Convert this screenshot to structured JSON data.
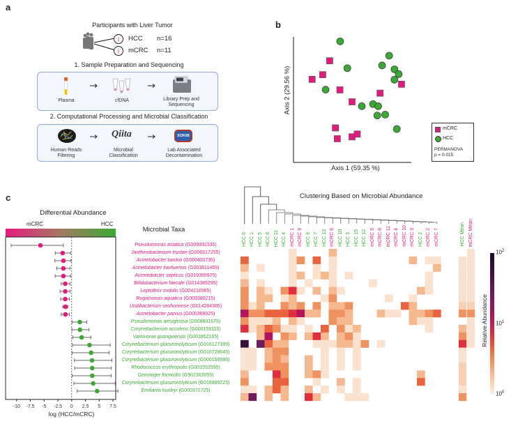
{
  "panel_labels": {
    "a": "a",
    "b": "b",
    "c": "c"
  },
  "colors": {
    "mCRC": "#e6197f",
    "HCC": "#3aaa35",
    "box_border": "#8fa9d8"
  },
  "panel_a": {
    "title": "Participants with Liver Tumor",
    "groups": [
      {
        "name": "HCC",
        "n": "n=16"
      },
      {
        "name": "mCRC",
        "n": "n=11"
      }
    ],
    "step1": {
      "title": "1. Sample Preparation and Sequencing",
      "items": [
        {
          "icon": "blood-tube-icon",
          "label": "Plasma"
        },
        {
          "icon": "dna-tubes-icon",
          "label": "cfDNA"
        },
        {
          "icon": "sequencer-icon",
          "label_line1": "Library Prep and",
          "label_line2": "Sequencing"
        }
      ]
    },
    "step2": {
      "title": "2. Computational Processing and Microbial Classification",
      "items": [
        {
          "icon": "reads-network-icon",
          "label_line1": "Human Reads",
          "label_line2": "Filtering"
        },
        {
          "icon": "qiita-logo",
          "logo_text": "Qiita",
          "label_line1": "Microbial",
          "label_line2": "Classification"
        },
        {
          "icon": "scrub-logo",
          "logo_text": "SCRUB",
          "label_line1": "Lab Associated",
          "label_line2": "Decontamination"
        }
      ]
    }
  },
  "chart_data": [
    {
      "type": "scatter",
      "xlabel": "Axis 1 (59.35 %)",
      "ylabel": "Axis 2 (29.56 %)",
      "xlim": [
        0,
        100
      ],
      "ylim": [
        0,
        100
      ],
      "grid": false,
      "legend": {
        "placement": "right",
        "note_line1": "PERMANOVA",
        "note_line2": "p = 0.015"
      },
      "series": [
        {
          "name": "mCRC",
          "marker": "square",
          "color": "#e6197f",
          "points": [
            [
              30.7,
              81.0
            ],
            [
              24.8,
              69.9
            ],
            [
              15.8,
              66.2
            ],
            [
              39.4,
              57.8
            ],
            [
              49.7,
              48.3
            ],
            [
              73.5,
              55.2
            ],
            [
              91.7,
              62.3
            ],
            [
              35.6,
              27.5
            ],
            [
              37.2,
              18.9
            ],
            [
              49.7,
              20.4
            ],
            [
              54.1,
              22.6
            ]
          ]
        },
        {
          "name": "HCC",
          "marker": "circle",
          "color": "#3aaa35",
          "points": [
            [
              39.6,
              96.5
            ],
            [
              45.7,
              75.1
            ],
            [
              27.3,
              58.0
            ],
            [
              58.0,
              44.8
            ],
            [
              67.5,
              46.5
            ],
            [
              71.9,
              44.8
            ],
            [
              71.1,
              37.4
            ],
            [
              77.8,
              38.1
            ],
            [
              87.7,
              26.6
            ],
            [
              81.2,
              85.1
            ],
            [
              75.2,
              77.3
            ],
            [
              85.7,
              74.2
            ],
            [
              89.3,
              70.4
            ],
            [
              85.7,
              65.9
            ]
          ]
        }
      ]
    },
    {
      "type": "forest",
      "title": "Differential Abundance",
      "gradient_left": "mCRC",
      "gradient_right": "HCC",
      "xlabel": "log (HCC/mCRC)",
      "xlim": [
        -12,
        8
      ],
      "xticks": [
        "-10",
        "-7.5",
        "-5",
        "-2.5",
        "0",
        "2.5",
        "5",
        "7.5"
      ],
      "xtick_values": [
        -10,
        -7.5,
        -5,
        -2.5,
        0,
        2.5,
        5,
        7.5
      ],
      "rows": [
        {
          "est": -5.67,
          "lo": -11.0,
          "hi": -1.5,
          "group": "mCRC"
        },
        {
          "est": -1.64,
          "lo": -2.97,
          "hi": -0.2,
          "group": "mCRC"
        },
        {
          "est": -1.5,
          "lo": -3.05,
          "hi": -0.12,
          "group": "mCRC"
        },
        {
          "est": -1.5,
          "lo": -2.7,
          "hi": -0.3,
          "group": "mCRC"
        },
        {
          "est": -1.5,
          "lo": -3.0,
          "hi": -0.2,
          "group": "mCRC"
        },
        {
          "est": -1.17,
          "lo": -1.9,
          "hi": -0.3,
          "group": "mCRC"
        },
        {
          "est": -1.17,
          "lo": -2.1,
          "hi": -0.3,
          "group": "mCRC"
        },
        {
          "est": -1.17,
          "lo": -2.0,
          "hi": -0.4,
          "group": "mCRC"
        },
        {
          "est": -1.13,
          "lo": -1.6,
          "hi": -0.7,
          "group": "mCRC"
        },
        {
          "est": -1.13,
          "lo": -1.9,
          "hi": -0.4,
          "group": "mCRC"
        },
        {
          "est": 1.47,
          "lo": 0.08,
          "hi": 2.74,
          "group": "HCC"
        },
        {
          "est": 1.51,
          "lo": 0.04,
          "hi": 3.15,
          "group": "HCC"
        },
        {
          "est": 1.81,
          "lo": 0.2,
          "hi": 3.49,
          "group": "HCC"
        },
        {
          "est": 3.24,
          "lo": 0.16,
          "hi": 7.0,
          "group": "HCC"
        },
        {
          "est": 3.53,
          "lo": 0.08,
          "hi": 6.8,
          "group": "HCC"
        },
        {
          "est": 3.7,
          "lo": 0.5,
          "hi": 7.3,
          "group": "HCC"
        },
        {
          "est": 3.74,
          "lo": 0.55,
          "hi": 7.2,
          "group": "HCC"
        },
        {
          "est": 3.74,
          "lo": 0.08,
          "hi": 7.2,
          "group": "HCC"
        },
        {
          "est": 3.9,
          "lo": 0.4,
          "hi": 7.9,
          "group": "HCC"
        },
        {
          "est": 4.62,
          "lo": 1.0,
          "hi": 8.4,
          "group": "HCC"
        }
      ]
    },
    {
      "type": "heatmap",
      "title": "Clustering Based on Microbial Abundance",
      "row_header": "Microbial Taxa",
      "colorbar_label": "Relative Abundance",
      "colorbar_ticks": [
        {
          "base": "10",
          "exp": "2"
        },
        {
          "base": "10",
          "exp": "1"
        },
        {
          "base": "10",
          "exp": "0"
        }
      ],
      "scale": "log",
      "range": [
        1,
        100
      ],
      "taxa": [
        {
          "name": "Pseudomonas asiatica",
          "id": "(G009932335)",
          "group": "mCRC"
        },
        {
          "name": "Janthinobacterium tructae",
          "id": "(G006517255)",
          "group": "mCRC"
        },
        {
          "name": "Acinetobacter tandoii",
          "id": "(G000400735)",
          "group": "mCRC"
        },
        {
          "name": "Acinetobacter tianfuensis",
          "id": "(G003611465)",
          "group": "mCRC"
        },
        {
          "name": "Acinetobacter septicus",
          "id": "(G019355975)",
          "group": "mCRC"
        },
        {
          "name": "Bifidobacterium faecale",
          "id": "(G014385295)",
          "group": "mCRC"
        },
        {
          "name": "Leptothrix mobilis",
          "id": "(G004216565)",
          "group": "mCRC"
        },
        {
          "name": "Rugamonas aquatica",
          "id": "(G009380215)",
          "group": "mCRC"
        },
        {
          "name": "Undibacterium seohonense",
          "id": "(G014284305)",
          "group": "mCRC"
        },
        {
          "name": "Acinetobacter parvus",
          "id": "(G000368025)",
          "group": "mCRC"
        },
        {
          "name": "Pseudomonas aeruginosa",
          "id": "(G008801675)",
          "group": "HCC"
        },
        {
          "name": "Corynebacterium accolens",
          "id": "(G000159115)",
          "group": "HCC"
        },
        {
          "name": "Variovorax guangxiensis",
          "id": "(G003952165)",
          "group": "HCC"
        },
        {
          "name": "Corynebacterium glucuronolyticum",
          "id": "(G016127395)",
          "group": "HCC"
        },
        {
          "name": "Corynebacterium glucuronolyticum",
          "id": "(G016728645)",
          "group": "HCC"
        },
        {
          "name": "Corynebacterium glucuronolyticum",
          "id": "(G000159595)",
          "group": "HCC"
        },
        {
          "name": "Rhodococcus erythropolis",
          "id": "(G001552595)",
          "group": "HCC"
        },
        {
          "name": "Gemmiger formicilis",
          "id": "(G902363055)",
          "group": "HCC"
        },
        {
          "name": "Corynebacterium glucuronolyticum",
          "id": "(G016889225)",
          "group": "HCC"
        },
        {
          "name": "Emiliania huxleyi",
          "id": "(G000372725)",
          "group": "HCC"
        }
      ],
      "columns": [
        {
          "label": "HCC 6",
          "group": "HCC"
        },
        {
          "label": "HCC 1",
          "group": "HCC"
        },
        {
          "label": "HCC 5",
          "group": "HCC"
        },
        {
          "label": "HCC 8",
          "group": "HCC"
        },
        {
          "label": "HCC 11",
          "group": "HCC"
        },
        {
          "label": "HCC 4",
          "group": "HCC"
        },
        {
          "label": "mCRC 1",
          "group": "mCRC"
        },
        {
          "label": "mCRC 9",
          "group": "mCRC"
        },
        {
          "label": "HCC 9",
          "group": "HCC"
        },
        {
          "label": "HCC 7",
          "group": "HCC"
        },
        {
          "label": "HCC 13",
          "group": "HCC"
        },
        {
          "label": "mCRC 6",
          "group": "mCRC"
        },
        {
          "label": "HCC 10",
          "group": "HCC"
        },
        {
          "label": "HCC 3",
          "group": "HCC"
        },
        {
          "label": "HCC 15",
          "group": "HCC"
        },
        {
          "label": "HCC 12",
          "group": "HCC"
        },
        {
          "label": "mCRC 5",
          "group": "mCRC"
        },
        {
          "label": "mCRC 8",
          "group": "mCRC"
        },
        {
          "label": "mCRC 11",
          "group": "mCRC"
        },
        {
          "label": "mCRC 4",
          "group": "mCRC"
        },
        {
          "label": "mCRC 10",
          "group": "mCRC"
        },
        {
          "label": "mCRC 3",
          "group": "mCRC"
        },
        {
          "label": "HCC 2",
          "group": "HCC"
        },
        {
          "label": "mCRC 2",
          "group": "mCRC"
        },
        {
          "label": "mCRC 7",
          "group": "mCRC"
        }
      ],
      "mean_columns": [
        {
          "label": "HCC Mean",
          "group": "HCC"
        },
        {
          "label": "mCRC Mean",
          "group": "mCRC"
        }
      ],
      "values": [
        [
          0,
          0,
          0,
          0,
          0,
          0,
          1.2,
          0,
          0,
          0,
          0,
          2,
          0,
          0,
          0,
          0,
          0,
          0,
          0,
          0,
          0,
          0,
          0,
          0,
          0
        ],
        [
          4.5,
          0,
          0,
          0,
          0,
          0,
          1.2,
          3,
          0,
          4.5,
          0,
          1.2,
          0,
          0,
          0,
          0,
          0,
          0,
          0,
          0,
          0,
          2,
          0,
          1.2,
          1.2
        ],
        [
          2,
          0,
          1.2,
          0,
          0,
          0,
          1.2,
          0,
          0,
          1.2,
          0,
          1.2,
          0,
          0,
          0,
          0,
          0,
          0,
          0,
          0,
          0,
          0,
          0,
          0,
          2
        ],
        [
          1.2,
          0,
          0,
          0,
          0,
          0,
          1.2,
          2,
          0,
          1.2,
          2,
          1.2,
          0,
          1.2,
          0,
          0,
          0,
          0,
          0,
          0,
          0,
          0,
          0,
          1.2,
          0
        ],
        [
          2,
          0,
          1.2,
          0,
          0,
          0,
          1.2,
          0,
          1.2,
          0,
          0,
          1.2,
          0,
          0,
          0,
          0,
          1.2,
          0,
          0,
          0,
          0,
          0,
          0,
          1.2,
          0
        ],
        [
          3,
          0,
          2,
          1.2,
          0,
          3,
          7,
          1.2,
          0,
          2,
          0,
          2,
          1.2,
          0,
          0,
          0,
          0,
          0,
          0,
          0,
          0,
          0,
          2,
          1.2,
          0
        ],
        [
          3,
          0,
          2,
          2,
          0,
          1.2,
          2,
          0,
          0,
          0,
          1.2,
          3,
          0,
          0,
          0,
          0,
          0,
          0,
          1.2,
          0,
          0,
          1.2,
          0,
          0,
          0
        ],
        [
          3,
          1.2,
          2,
          0,
          0,
          3,
          2,
          3,
          0,
          3,
          0,
          2,
          2,
          3,
          0,
          0,
          0,
          0,
          0,
          0,
          4.5,
          2,
          0,
          0,
          0
        ],
        [
          12,
          3,
          3,
          4.5,
          4.5,
          4.5,
          7,
          12,
          2,
          2,
          0,
          3,
          3,
          2,
          0,
          0,
          0,
          2,
          1.2,
          1.2,
          0,
          2,
          2,
          3,
          4.5
        ],
        [
          3,
          1.2,
          1.2,
          1.2,
          2,
          0,
          2,
          1.2,
          0,
          0,
          0,
          3,
          2,
          2,
          0,
          0,
          0,
          0,
          0,
          0,
          0,
          2,
          1.2,
          1.2,
          0
        ],
        [
          7,
          1.2,
          2,
          4.5,
          3,
          1.2,
          1.2,
          0,
          1.2,
          0,
          4.5,
          0,
          3,
          1.2,
          2,
          0,
          0,
          0,
          0,
          0,
          0,
          0,
          0,
          1.2,
          0
        ],
        [
          0,
          0,
          2,
          12,
          0,
          3,
          2,
          0,
          2,
          7,
          2,
          0,
          2,
          3,
          1.2,
          0,
          0,
          0,
          0,
          0,
          0,
          0,
          0,
          0,
          0
        ],
        [
          60,
          0,
          25,
          4.5,
          2,
          2,
          0,
          0,
          0,
          1.2,
          1.2,
          1.2,
          2,
          2,
          1.2,
          3,
          0,
          1.2,
          0,
          0,
          0,
          0,
          0,
          0,
          0
        ],
        [
          1.2,
          1.2,
          0,
          2,
          3,
          3,
          0,
          0,
          0,
          0,
          1.2,
          0,
          1.2,
          0,
          1.2,
          0,
          0,
          0,
          0,
          0,
          0,
          0,
          0,
          0,
          0
        ],
        [
          1.2,
          1.2,
          0,
          2,
          3,
          2,
          0,
          0,
          2,
          0,
          1.2,
          0,
          1.2,
          0,
          1.2,
          0,
          0,
          0,
          0,
          0,
          0,
          0,
          0,
          0,
          0
        ],
        [
          1.2,
          1.2,
          0,
          3,
          3,
          3,
          0,
          0,
          2,
          0,
          1.2,
          0,
          1.2,
          0,
          1.2,
          0,
          0,
          0,
          0,
          0,
          0,
          0,
          0,
          0,
          0
        ],
        [
          2,
          0,
          0,
          0,
          7,
          3,
          0,
          0,
          2,
          3,
          1.2,
          0,
          0,
          0,
          0,
          0,
          0,
          0,
          0,
          0,
          0,
          0,
          2,
          0,
          0
        ],
        [
          3,
          0,
          0,
          0,
          4.5,
          4.5,
          0,
          0,
          0,
          1.2,
          0,
          0,
          2,
          0,
          1.2,
          0,
          0,
          0,
          0,
          0,
          0,
          0,
          4.5,
          0,
          0
        ],
        [
          1.2,
          1.2,
          0,
          2,
          4.5,
          2,
          0,
          0,
          2,
          0,
          1.2,
          0,
          1.2,
          0,
          1.2,
          0,
          0,
          0,
          0,
          0,
          0,
          0,
          0,
          0,
          0
        ],
        [
          2,
          25,
          0,
          2,
          0,
          2,
          0,
          0,
          7,
          2,
          0,
          0,
          0,
          1.2,
          1.2,
          1.2,
          0,
          0,
          0,
          0,
          0,
          0,
          0,
          0,
          0
        ]
      ],
      "mean_values": {
        "HCC Mean": [
          0,
          1.2,
          1.2,
          1.2,
          1.2,
          1.2,
          1.2,
          1.5,
          3,
          0,
          2,
          3,
          7,
          1.2,
          1.2,
          1.5,
          1.5,
          1.5,
          1.2,
          3
        ],
        "mCRC Mean": [
          1.2,
          1.2,
          1.2,
          1.2,
          1.2,
          1.2,
          1.2,
          1.5,
          3,
          1.2,
          1.2,
          1.2,
          1.2,
          0,
          0,
          0,
          0,
          0,
          0,
          0
        ]
      },
      "dendrogram": true
    }
  ]
}
